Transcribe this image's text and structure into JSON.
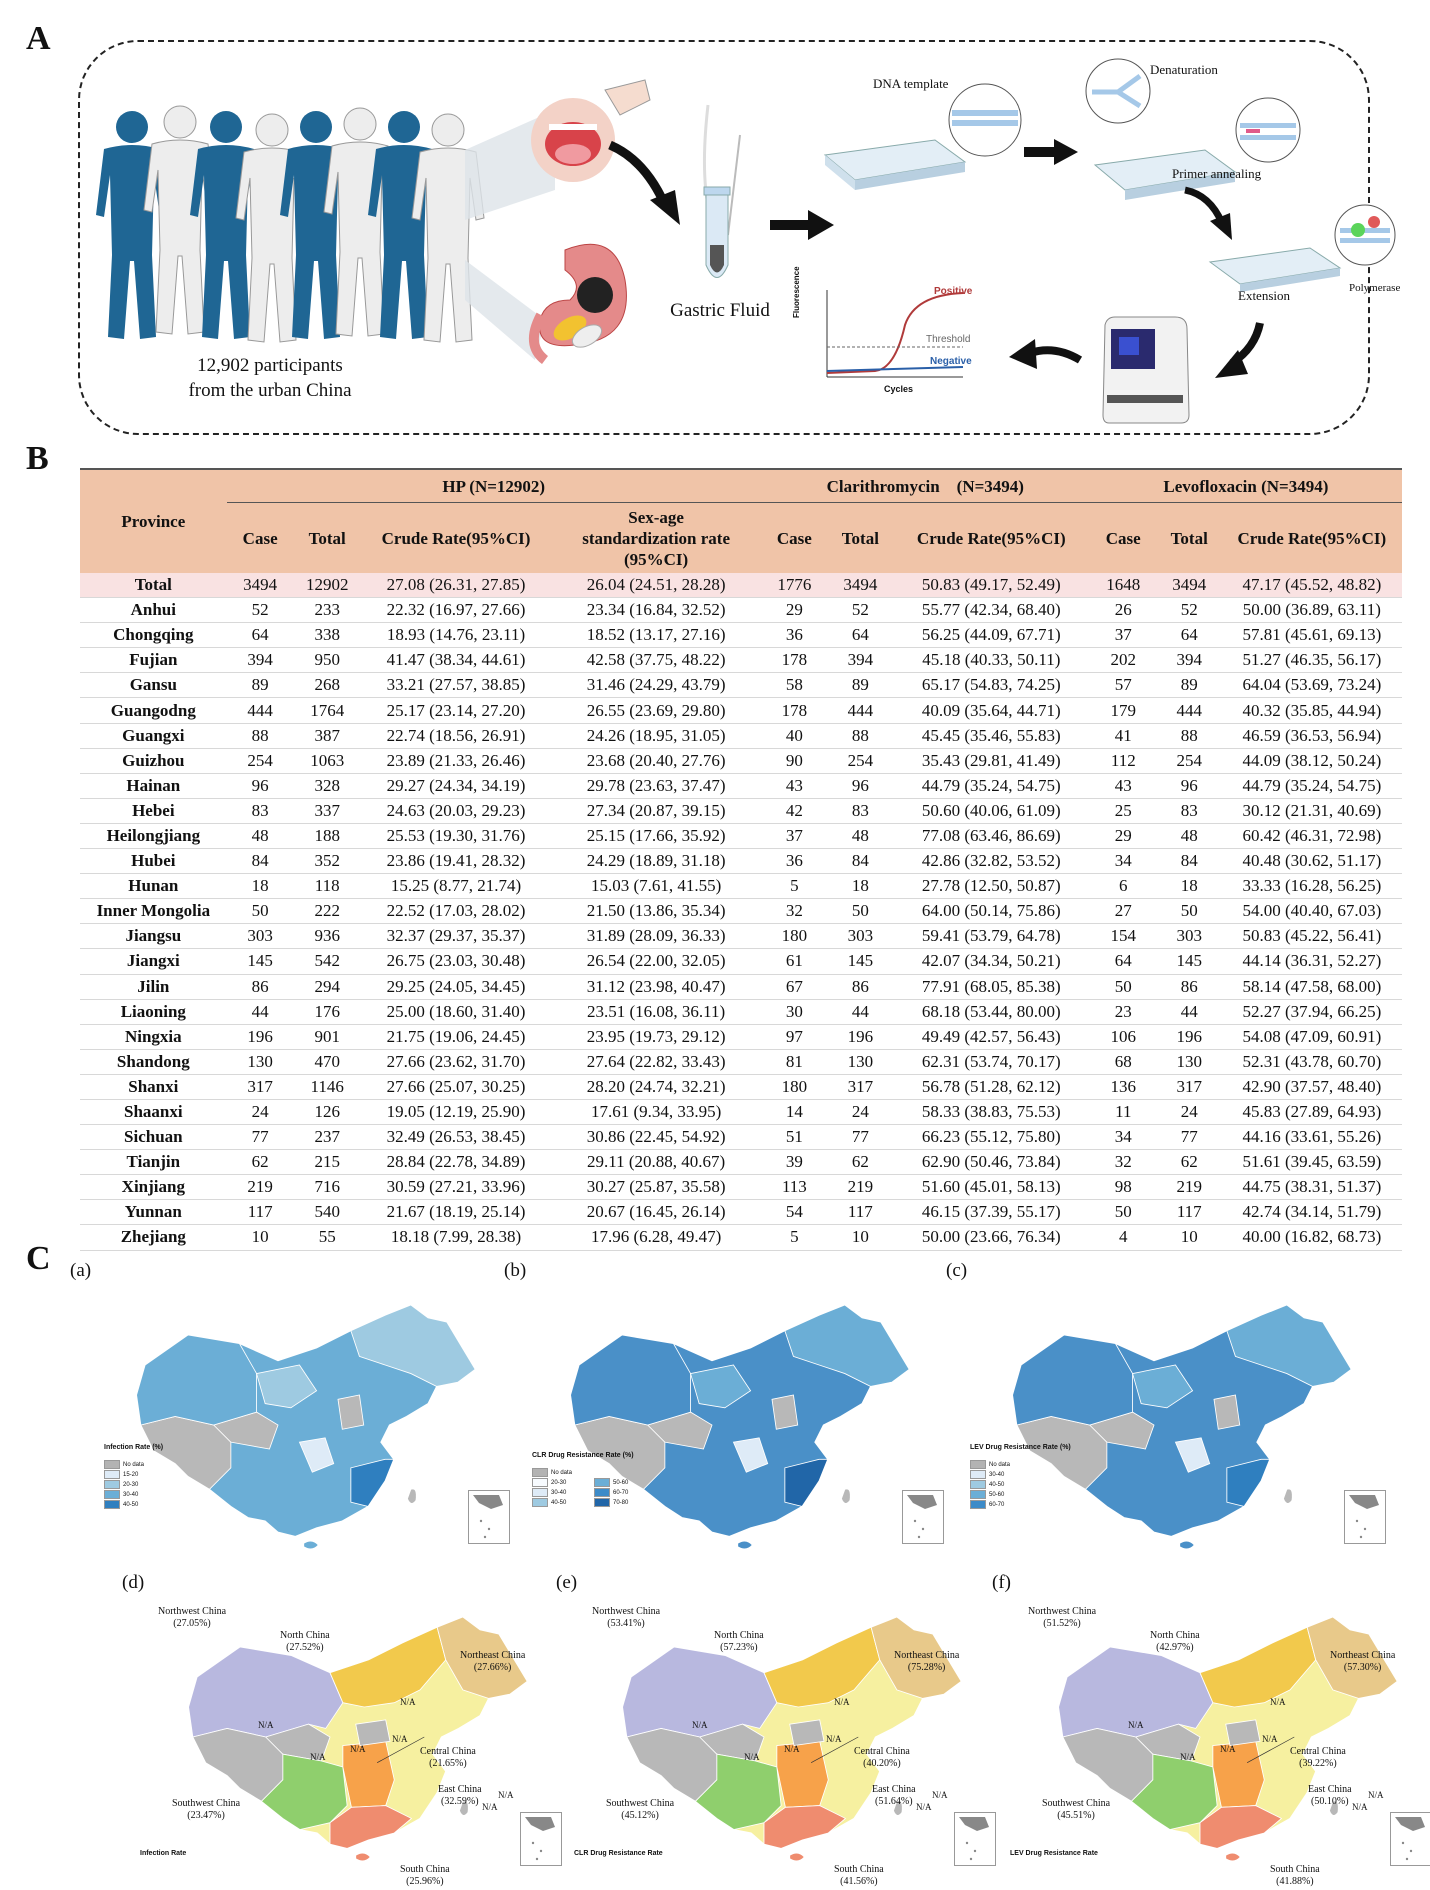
{
  "panel_letters": {
    "a": "A",
    "b": "B",
    "c": "C"
  },
  "panel_a": {
    "participants_line1": "12,902 participants",
    "participants_line2": "from the urban China",
    "gastric_fluid": "Gastric Fluid",
    "dna_template": "DNA template",
    "denaturation": "Denaturation",
    "primer_annealing": "Primer annealing",
    "extension": "Extension",
    "polymerase": "Polymerase",
    "curve_positive": "Positive",
    "curve_threshold": "Threshold",
    "curve_negative": "Negative",
    "curve_xlabel": "Cycles",
    "curve_ylabel": "Fluorescence"
  },
  "table": {
    "province_header": "Province",
    "group_hp": "HP (N=12902)",
    "group_clr": "Clarithromycin　(N=3494)",
    "group_lev": "Levofloxacin (N=3494)",
    "col_case": "Case",
    "col_total": "Total",
    "col_crude": "Crude Rate(95%CI)",
    "col_std_line1": "Sex-age",
    "col_std_line2": "standardization rate",
    "col_std_line3": "(95%CI)",
    "rows": [
      [
        "Total",
        "3494",
        "12902",
        "27.08 (26.31, 27.85)",
        "26.04 (24.51, 28.28)",
        "1776",
        "3494",
        "50.83 (49.17, 52.49)",
        "1648",
        "3494",
        "47.17 (45.52, 48.82)"
      ],
      [
        "Anhui",
        "52",
        "233",
        "22.32 (16.97, 27.66)",
        "23.34 (16.84, 32.52)",
        "29",
        "52",
        "55.77 (42.34, 68.40)",
        "26",
        "52",
        "50.00 (36.89, 63.11)"
      ],
      [
        "Chongqing",
        "64",
        "338",
        "18.93 (14.76, 23.11)",
        "18.52 (13.17, 27.16)",
        "36",
        "64",
        "56.25 (44.09, 67.71)",
        "37",
        "64",
        "57.81 (45.61, 69.13)"
      ],
      [
        "Fujian",
        "394",
        "950",
        "41.47 (38.34, 44.61)",
        "42.58 (37.75, 48.22)",
        "178",
        "394",
        "45.18 (40.33, 50.11)",
        "202",
        "394",
        "51.27 (46.35, 56.17)"
      ],
      [
        "Gansu",
        "89",
        "268",
        "33.21 (27.57, 38.85)",
        "31.46 (24.29, 43.79)",
        "58",
        "89",
        "65.17 (54.83, 74.25)",
        "57",
        "89",
        "64.04 (53.69, 73.24)"
      ],
      [
        "Guangodng",
        "444",
        "1764",
        "25.17 (23.14, 27.20)",
        "26.55 (23.69, 29.80)",
        "178",
        "444",
        "40.09 (35.64, 44.71)",
        "179",
        "444",
        "40.32 (35.85, 44.94)"
      ],
      [
        "Guangxi",
        "88",
        "387",
        "22.74 (18.56, 26.91)",
        "24.26 (18.95, 31.05)",
        "40",
        "88",
        "45.45 (35.46, 55.83)",
        "41",
        "88",
        "46.59 (36.53, 56.94)"
      ],
      [
        "Guizhou",
        "254",
        "1063",
        "23.89 (21.33, 26.46)",
        "23.68 (20.40, 27.76)",
        "90",
        "254",
        "35.43 (29.81, 41.49)",
        "112",
        "254",
        "44.09 (38.12, 50.24)"
      ],
      [
        "Hainan",
        "96",
        "328",
        "29.27 (24.34, 34.19)",
        "29.78 (23.63, 37.47)",
        "43",
        "96",
        "44.79 (35.24, 54.75)",
        "43",
        "96",
        "44.79 (35.24, 54.75)"
      ],
      [
        "Hebei",
        "83",
        "337",
        "24.63 (20.03, 29.23)",
        "27.34 (20.87, 39.15)",
        "42",
        "83",
        "50.60 (40.06, 61.09)",
        "25",
        "83",
        "30.12 (21.31, 40.69)"
      ],
      [
        "Heilongjiang",
        "48",
        "188",
        "25.53 (19.30, 31.76)",
        "25.15 (17.66, 35.92)",
        "37",
        "48",
        "77.08 (63.46, 86.69)",
        "29",
        "48",
        "60.42 (46.31, 72.98)"
      ],
      [
        "Hubei",
        "84",
        "352",
        "23.86 (19.41, 28.32)",
        "24.29 (18.89, 31.18)",
        "36",
        "84",
        "42.86 (32.82, 53.52)",
        "34",
        "84",
        "40.48 (30.62, 51.17)"
      ],
      [
        "Hunan",
        "18",
        "118",
        "15.25 (8.77, 21.74)",
        "15.03 (7.61, 41.55)",
        "5",
        "18",
        "27.78 (12.50, 50.87)",
        "6",
        "18",
        "33.33 (16.28, 56.25)"
      ],
      [
        "Inner Mongolia",
        "50",
        "222",
        "22.52 (17.03, 28.02)",
        "21.50 (13.86, 35.34)",
        "32",
        "50",
        "64.00 (50.14, 75.86)",
        "27",
        "50",
        "54.00 (40.40, 67.03)"
      ],
      [
        "Jiangsu",
        "303",
        "936",
        "32.37 (29.37, 35.37)",
        "31.89 (28.09, 36.33)",
        "180",
        "303",
        "59.41 (53.79, 64.78)",
        "154",
        "303",
        "50.83 (45.22, 56.41)"
      ],
      [
        "Jiangxi",
        "145",
        "542",
        "26.75 (23.03, 30.48)",
        "26.54 (22.00, 32.05)",
        "61",
        "145",
        "42.07 (34.34, 50.21)",
        "64",
        "145",
        "44.14 (36.31, 52.27)"
      ],
      [
        "Jilin",
        "86",
        "294",
        "29.25 (24.05, 34.45)",
        "31.12 (23.98, 40.47)",
        "67",
        "86",
        "77.91 (68.05, 85.38)",
        "50",
        "86",
        "58.14 (47.58, 68.00)"
      ],
      [
        "Liaoning",
        "44",
        "176",
        "25.00 (18.60, 31.40)",
        "23.51 (16.08, 36.11)",
        "30",
        "44",
        "68.18 (53.44, 80.00)",
        "23",
        "44",
        "52.27 (37.94, 66.25)"
      ],
      [
        "Ningxia",
        "196",
        "901",
        "21.75 (19.06, 24.45)",
        "23.95 (19.73, 29.12)",
        "97",
        "196",
        "49.49 (42.57, 56.43)",
        "106",
        "196",
        "54.08 (47.09, 60.91)"
      ],
      [
        "Shandong",
        "130",
        "470",
        "27.66 (23.62, 31.70)",
        "27.64 (22.82, 33.43)",
        "81",
        "130",
        "62.31 (53.74, 70.17)",
        "68",
        "130",
        "52.31 (43.78, 60.70)"
      ],
      [
        "Shanxi",
        "317",
        "1146",
        "27.66 (25.07, 30.25)",
        "28.20 (24.74, 32.21)",
        "180",
        "317",
        "56.78 (51.28, 62.12)",
        "136",
        "317",
        "42.90 (37.57, 48.40)"
      ],
      [
        "Shaanxi",
        "24",
        "126",
        "19.05 (12.19, 25.90)",
        "17.61 (9.34, 33.95)",
        "14",
        "24",
        "58.33 (38.83, 75.53)",
        "11",
        "24",
        "45.83 (27.89, 64.93)"
      ],
      [
        "Sichuan",
        "77",
        "237",
        "32.49 (26.53, 38.45)",
        "30.86 (22.45, 54.92)",
        "51",
        "77",
        "66.23 (55.12, 75.80)",
        "34",
        "77",
        "44.16 (33.61, 55.26)"
      ],
      [
        "Tianjin",
        "62",
        "215",
        "28.84 (22.78, 34.89)",
        "29.11 (20.88, 40.67)",
        "39",
        "62",
        "62.90 (50.46, 73.84)",
        "32",
        "62",
        "51.61 (39.45, 63.59)"
      ],
      [
        "Xinjiang",
        "219",
        "716",
        "30.59 (27.21, 33.96)",
        "30.27 (25.87, 35.58)",
        "113",
        "219",
        "51.60 (45.01, 58.13)",
        "98",
        "219",
        "44.75 (38.31, 51.37)"
      ],
      [
        "Yunnan",
        "117",
        "540",
        "21.67 (18.19, 25.14)",
        "20.67 (16.45, 26.14)",
        "54",
        "117",
        "46.15 (37.39, 55.17)",
        "50",
        "117",
        "42.74 (34.14, 51.79)"
      ],
      [
        "Zhejiang",
        "10",
        "55",
        "18.18 (7.99, 28.38)",
        "17.96 (6.28, 49.47)",
        "5",
        "10",
        "50.00 (23.66, 76.34)",
        "4",
        "10",
        "40.00 (16.82, 68.73)"
      ]
    ]
  },
  "panel_c": {
    "sub_labels": [
      "(a)",
      "(b)",
      "(c)",
      "(d)",
      "(e)",
      "(f)"
    ],
    "legend_a": {
      "title": "Infection Rate (%)",
      "items": [
        "No data",
        "15-20",
        "20-30",
        "30-40",
        "40-50"
      ],
      "colors": [
        "#b3b3b3",
        "#deebf7",
        "#9ecae1",
        "#6baed6",
        "#2f7fbf"
      ]
    },
    "legend_b": {
      "title": "CLR Drug Resistance Rate (%)",
      "items_col1": [
        "No data",
        "20-30",
        "30-40",
        "40-50"
      ],
      "items_col2": [
        "50-60",
        "60-70",
        "70-80"
      ],
      "colors_col1": [
        "#b3b3b3",
        "#f7fbff",
        "#deebf7",
        "#9ecae1"
      ],
      "colors_col2": [
        "#6baed6",
        "#3d8bc8",
        "#2166a8"
      ]
    },
    "legend_c": {
      "title": "LEV Drug Resistance Rate (%)",
      "items": [
        "No data",
        "30-40",
        "40-50",
        "50-60",
        "60-70"
      ],
      "colors": [
        "#b3b3b3",
        "#deebf7",
        "#9ecae1",
        "#6baed6",
        "#3d8bc8"
      ]
    },
    "na": "N/A",
    "region_names": [
      "Northwest China",
      "North China",
      "Northeast China",
      "Central China",
      "East China",
      "Southwest China",
      "South China"
    ],
    "d_values": [
      "(27.05%)",
      "(27.52%)",
      "(27.66%)",
      "(21.65%)",
      "(32.59%)",
      "(23.47%)",
      "(25.96%)"
    ],
    "e_values": [
      "(53.41%)",
      "(57.23%)",
      "(75.28%)",
      "(40.20%)",
      "(51.64%)",
      "(45.12%)",
      "(41.56%)"
    ],
    "f_values": [
      "(51.52%)",
      "(42.97%)",
      "(57.30%)",
      "(39.22%)",
      "(50.10%)",
      "(45.51%)",
      "(41.88%)"
    ],
    "d_caption": "Infection Rate",
    "e_caption": "CLR Drug Resistance Rate",
    "f_caption": "LEV Drug Resistance Rate",
    "region_colors": {
      "northwest": "#b8b8df",
      "north": "#f2c94c",
      "northeast": "#e8c98a",
      "central": "#f7a24a",
      "east": "#f6f0a0",
      "southwest": "#8fcf6d",
      "south": "#ef8c6f",
      "nodata": "#b8b8b8"
    }
  }
}
